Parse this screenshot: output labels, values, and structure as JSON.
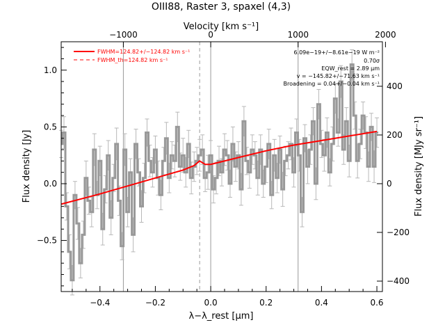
{
  "chart_data": {
    "type": "line",
    "title": "OIII88, Raster 3, spaxel (4,3)",
    "xlabel": "λ−λ_rest [μm]",
    "ylabel": "Flux density [Jy]",
    "top_xlabel": "Velocity [km s⁻¹]",
    "right_ylabel": "Flux density [MJy sr⁻¹]",
    "xlim": [
      -0.54,
      0.62
    ],
    "ylim": [
      -0.95,
      1.25
    ],
    "x_ticks": [
      -0.4,
      -0.2,
      0.0,
      0.2,
      0.4,
      0.6
    ],
    "x_tick_labels": [
      "−0.4",
      "−0.2",
      "0.0",
      "0.2",
      "0.4",
      "0.6"
    ],
    "y_ticks": [
      -0.5,
      0.0,
      0.5,
      1.0
    ],
    "y_tick_labels": [
      "−0.5",
      "0.0",
      "0.5",
      "1.0"
    ],
    "top_ticks": [
      -0.3155,
      0.0,
      0.3155,
      0.631
    ],
    "top_tick_labels": [
      "−1000",
      "0",
      "1000",
      "2000"
    ],
    "right_ticks": [
      -0.858,
      -0.429,
      0.0,
      0.429,
      0.858
    ],
    "right_tick_labels": [
      "−400",
      "−200",
      "0",
      "200",
      "400"
    ],
    "vlines": [
      -0.3155,
      0.0,
      0.3155
    ],
    "dashed_vline": -0.04,
    "legend": [
      {
        "label": "FWHM=124.82+/−124.82 km s⁻¹",
        "style": "solid",
        "color": "#ff0000"
      },
      {
        "label": "FWHM_th=124.82 km s⁻¹",
        "style": "dashed",
        "color": "#ff0000"
      }
    ],
    "annotations": [
      "6.09e−19+/−8.61e−19 W m⁻²",
      "0.70σ",
      "EQW_rest = 2.89 μm",
      "v = −145.82+/−71.63 km s⁻¹",
      "Broadening = 0.04+/−0.04 km s⁻¹"
    ],
    "series": [
      {
        "style": "step",
        "color": "#999999",
        "x": [
          -0.54,
          -0.53,
          -0.52,
          -0.51,
          -0.5,
          -0.49,
          -0.48,
          -0.47,
          -0.46,
          -0.45,
          -0.44,
          -0.43,
          -0.42,
          -0.41,
          -0.4,
          -0.39,
          -0.38,
          -0.37,
          -0.36,
          -0.35,
          -0.34,
          -0.33,
          -0.32,
          -0.31,
          -0.3,
          -0.29,
          -0.28,
          -0.27,
          -0.26,
          -0.25,
          -0.24,
          -0.23,
          -0.22,
          -0.21,
          -0.2,
          -0.19,
          -0.18,
          -0.17,
          -0.16,
          -0.15,
          -0.14,
          -0.13,
          -0.12,
          -0.11,
          -0.1,
          -0.09,
          -0.08,
          -0.07,
          -0.06,
          -0.05,
          -0.04,
          -0.03,
          -0.02,
          -0.01,
          0.0,
          0.01,
          0.02,
          0.03,
          0.04,
          0.05,
          0.06,
          0.07,
          0.08,
          0.09,
          0.1,
          0.11,
          0.12,
          0.13,
          0.14,
          0.15,
          0.16,
          0.17,
          0.18,
          0.19,
          0.2,
          0.21,
          0.22,
          0.23,
          0.24,
          0.25,
          0.26,
          0.27,
          0.28,
          0.29,
          0.3,
          0.31,
          0.32,
          0.33,
          0.34,
          0.35,
          0.36,
          0.37,
          0.38,
          0.39,
          0.4,
          0.41,
          0.42,
          0.43,
          0.44,
          0.45,
          0.46,
          0.47,
          0.48,
          0.49,
          0.5,
          0.51,
          0.52,
          0.53,
          0.54,
          0.55,
          0.56,
          0.57,
          0.58,
          0.59,
          0.6
        ],
        "y": [
          0.35,
          0.45,
          -0.2,
          -0.6,
          -0.85,
          -0.1,
          -0.35,
          -0.7,
          -0.45,
          0.05,
          -0.15,
          -0.25,
          0.3,
          -0.1,
          0.2,
          -0.4,
          -0.05,
          0.25,
          -0.3,
          0.05,
          0.35,
          -0.15,
          -0.55,
          0.3,
          -0.25,
          0.1,
          -0.45,
          0.35,
          0.1,
          -0.2,
          0.05,
          0.45,
          0.2,
          0.1,
          0.3,
          0.05,
          -0.1,
          0.2,
          0.4,
          0.05,
          0.25,
          0.2,
          0.5,
          0.15,
          0.25,
          0.1,
          0.35,
          0.05,
          0.15,
          0.2,
          0.25,
          0.3,
          0.05,
          0.1,
          0.25,
          -0.05,
          0.05,
          0.2,
          0.1,
          0.3,
          0.25,
          0.0,
          0.35,
          0.15,
          0.25,
          -0.05,
          0.55,
          0.2,
          0.1,
          0.3,
          0.25,
          0.05,
          0.3,
          0.0,
          0.15,
          0.35,
          -0.1,
          0.25,
          0.05,
          0.3,
          -0.05,
          0.2,
          0.25,
          0.35,
          0.1,
          0.45,
          0.25,
          -0.25,
          0.4,
          0.15,
          0.3,
          0.55,
          0.0,
          0.7,
          0.35,
          0.25,
          0.45,
          0.1,
          0.35,
          0.75,
          0.45,
          0.9,
          0.3,
          0.55,
          0.2,
          1.05,
          0.6,
          0.2,
          0.35,
          0.6,
          0.45,
          0.15,
          0.5,
          0.15,
          0.45
        ],
        "errors": [
          0.12,
          0.14,
          0.12,
          0.15,
          0.13,
          0.12,
          0.14,
          0.13,
          0.12,
          0.15,
          0.12,
          0.13,
          0.14,
          0.12,
          0.13,
          0.14,
          0.12,
          0.13,
          0.15,
          0.12,
          0.14,
          0.13,
          0.12,
          0.14,
          0.13,
          0.12,
          0.15,
          0.13,
          0.12,
          0.14,
          0.13,
          0.12,
          0.14,
          0.13,
          0.12,
          0.15,
          0.13,
          0.12,
          0.14,
          0.13,
          0.12,
          0.14,
          0.13,
          0.12,
          0.15,
          0.13,
          0.12,
          0.14,
          0.13,
          0.12,
          0.14,
          0.13,
          0.12,
          0.15,
          0.13,
          0.12,
          0.14,
          0.13,
          0.12,
          0.14,
          0.13,
          0.12,
          0.15,
          0.13,
          0.12,
          0.14,
          0.13,
          0.12,
          0.14,
          0.13,
          0.12,
          0.15,
          0.13,
          0.12,
          0.14,
          0.13,
          0.12,
          0.14,
          0.13,
          0.12,
          0.15,
          0.13,
          0.12,
          0.14,
          0.13,
          0.12,
          0.14,
          0.13,
          0.12,
          0.15,
          0.13,
          0.12,
          0.14,
          0.13,
          0.12,
          0.14,
          0.13,
          0.12,
          0.15,
          0.13,
          0.12,
          0.14,
          0.13,
          0.12,
          0.14,
          0.13,
          0.12,
          0.15,
          0.13,
          0.12,
          0.14,
          0.13,
          0.12,
          0.14,
          0.13
        ]
      },
      {
        "style": "line",
        "color": "#ff0000",
        "x": [
          -0.54,
          -0.4,
          -0.2,
          -0.1,
          -0.06,
          -0.04,
          -0.02,
          0.0,
          0.1,
          0.2,
          0.3,
          0.4,
          0.5,
          0.6
        ],
        "y": [
          -0.18,
          -0.09,
          0.05,
          0.12,
          0.16,
          0.2,
          0.17,
          0.17,
          0.23,
          0.29,
          0.34,
          0.38,
          0.42,
          0.46
        ]
      }
    ]
  }
}
